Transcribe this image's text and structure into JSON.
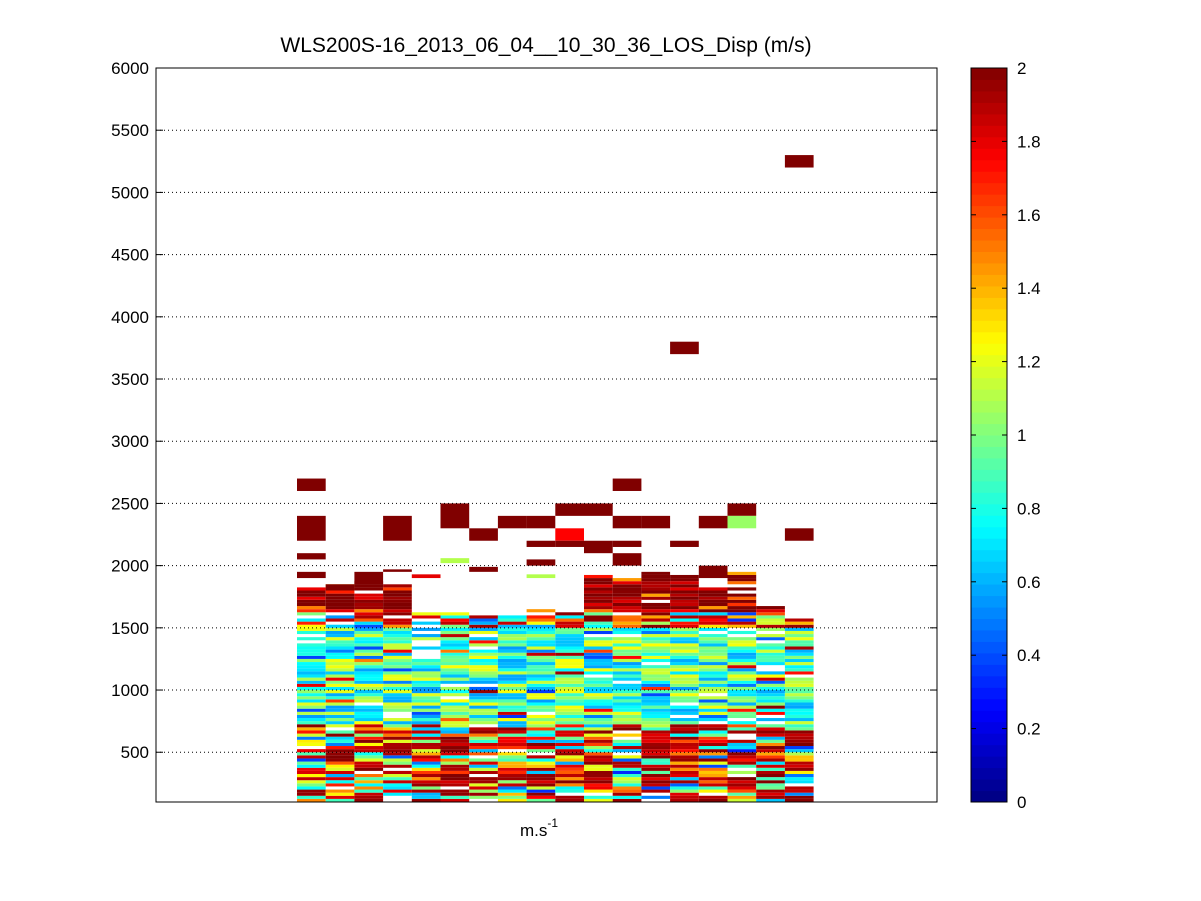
{
  "chart_data": {
    "type": "heatmap",
    "title": "WLS200S-16_2013_06_04__10_30_36_LOS_Disp (m/s)",
    "xlabel_base": "m.s",
    "xlabel_sup": "-1",
    "ylabel": "",
    "ylim": [
      100,
      6000
    ],
    "yticks": [
      500,
      1000,
      1500,
      2000,
      2500,
      3000,
      3500,
      4000,
      4500,
      5000,
      5500,
      6000
    ],
    "grid": "y-dotted",
    "columns": 18,
    "colorbar": {
      "colormap": "jet",
      "clim": [
        0,
        2
      ],
      "ticks": [
        0,
        0.2,
        0.4,
        0.6,
        0.8,
        1,
        1.2,
        1.4,
        1.6,
        1.8,
        2
      ],
      "tick_labels": [
        "0",
        "0.2",
        "0.4",
        "0.6",
        "0.8",
        "1",
        "1.2",
        "1.4",
        "1.6",
        "1.8",
        "2"
      ]
    },
    "cells": [
      {
        "col": 0,
        "y0": 2600,
        "y1": 2700,
        "v": 2
      },
      {
        "col": 0,
        "y0": 2200,
        "y1": 2400,
        "v": 2
      },
      {
        "col": 0,
        "y0": 2050,
        "y1": 2100,
        "v": 2
      },
      {
        "col": 0,
        "y0": 1900,
        "y1": 1950,
        "v": 2
      },
      {
        "col": 1,
        "y0": 1800,
        "y1": 1850,
        "v": 2
      },
      {
        "col": 2,
        "y0": 1850,
        "y1": 1950,
        "v": 2
      },
      {
        "col": 3,
        "y0": 2200,
        "y1": 2400,
        "v": 2
      },
      {
        "col": 3,
        "y0": 1950,
        "y1": 1970,
        "v": 2
      },
      {
        "col": 4,
        "y0": 1900,
        "y1": 1930,
        "v": 1.8
      },
      {
        "col": 5,
        "y0": 2300,
        "y1": 2500,
        "v": 2
      },
      {
        "col": 5,
        "y0": 2020,
        "y1": 2060,
        "v": 1.1
      },
      {
        "col": 6,
        "y0": 2200,
        "y1": 2300,
        "v": 2
      },
      {
        "col": 6,
        "y0": 1950,
        "y1": 1990,
        "v": 2
      },
      {
        "col": 7,
        "y0": 2300,
        "y1": 2400,
        "v": 2
      },
      {
        "col": 8,
        "y0": 2300,
        "y1": 2400,
        "v": 2
      },
      {
        "col": 8,
        "y0": 2150,
        "y1": 2200,
        "v": 2
      },
      {
        "col": 8,
        "y0": 2000,
        "y1": 2050,
        "v": 2
      },
      {
        "col": 8,
        "y0": 1900,
        "y1": 1930,
        "v": 1.1
      },
      {
        "col": 9,
        "y0": 2400,
        "y1": 2500,
        "v": 2
      },
      {
        "col": 9,
        "y0": 2200,
        "y1": 2300,
        "v": 1.75
      },
      {
        "col": 9,
        "y0": 2150,
        "y1": 2200,
        "v": 2
      },
      {
        "col": 10,
        "y0": 2400,
        "y1": 2500,
        "v": 2
      },
      {
        "col": 10,
        "y0": 2100,
        "y1": 2200,
        "v": 2
      },
      {
        "col": 11,
        "y0": 2600,
        "y1": 2700,
        "v": 2
      },
      {
        "col": 11,
        "y0": 2300,
        "y1": 2400,
        "v": 2
      },
      {
        "col": 11,
        "y0": 2150,
        "y1": 2200,
        "v": 2
      },
      {
        "col": 11,
        "y0": 2000,
        "y1": 2100,
        "v": 2
      },
      {
        "col": 12,
        "y0": 2300,
        "y1": 2400,
        "v": 2
      },
      {
        "col": 13,
        "y0": 3700,
        "y1": 3800,
        "v": 2
      },
      {
        "col": 13,
        "y0": 2150,
        "y1": 2200,
        "v": 2
      },
      {
        "col": 14,
        "y0": 2300,
        "y1": 2400,
        "v": 2
      },
      {
        "col": 14,
        "y0": 1900,
        "y1": 2000,
        "v": 2
      },
      {
        "col": 15,
        "y0": 2400,
        "y1": 2500,
        "v": 2
      },
      {
        "col": 15,
        "y0": 2300,
        "y1": 2400,
        "v": 1.05
      },
      {
        "col": 17,
        "y0": 5200,
        "y1": 5300,
        "v": 2
      },
      {
        "col": 17,
        "y0": 2200,
        "y1": 2300,
        "v": 2
      }
    ],
    "dense_block": {
      "col_start": 0,
      "col_end": 17,
      "y_start": 100,
      "y_end": 1950,
      "row_height": 25,
      "typical_range": [
        0.4,
        2
      ]
    }
  }
}
